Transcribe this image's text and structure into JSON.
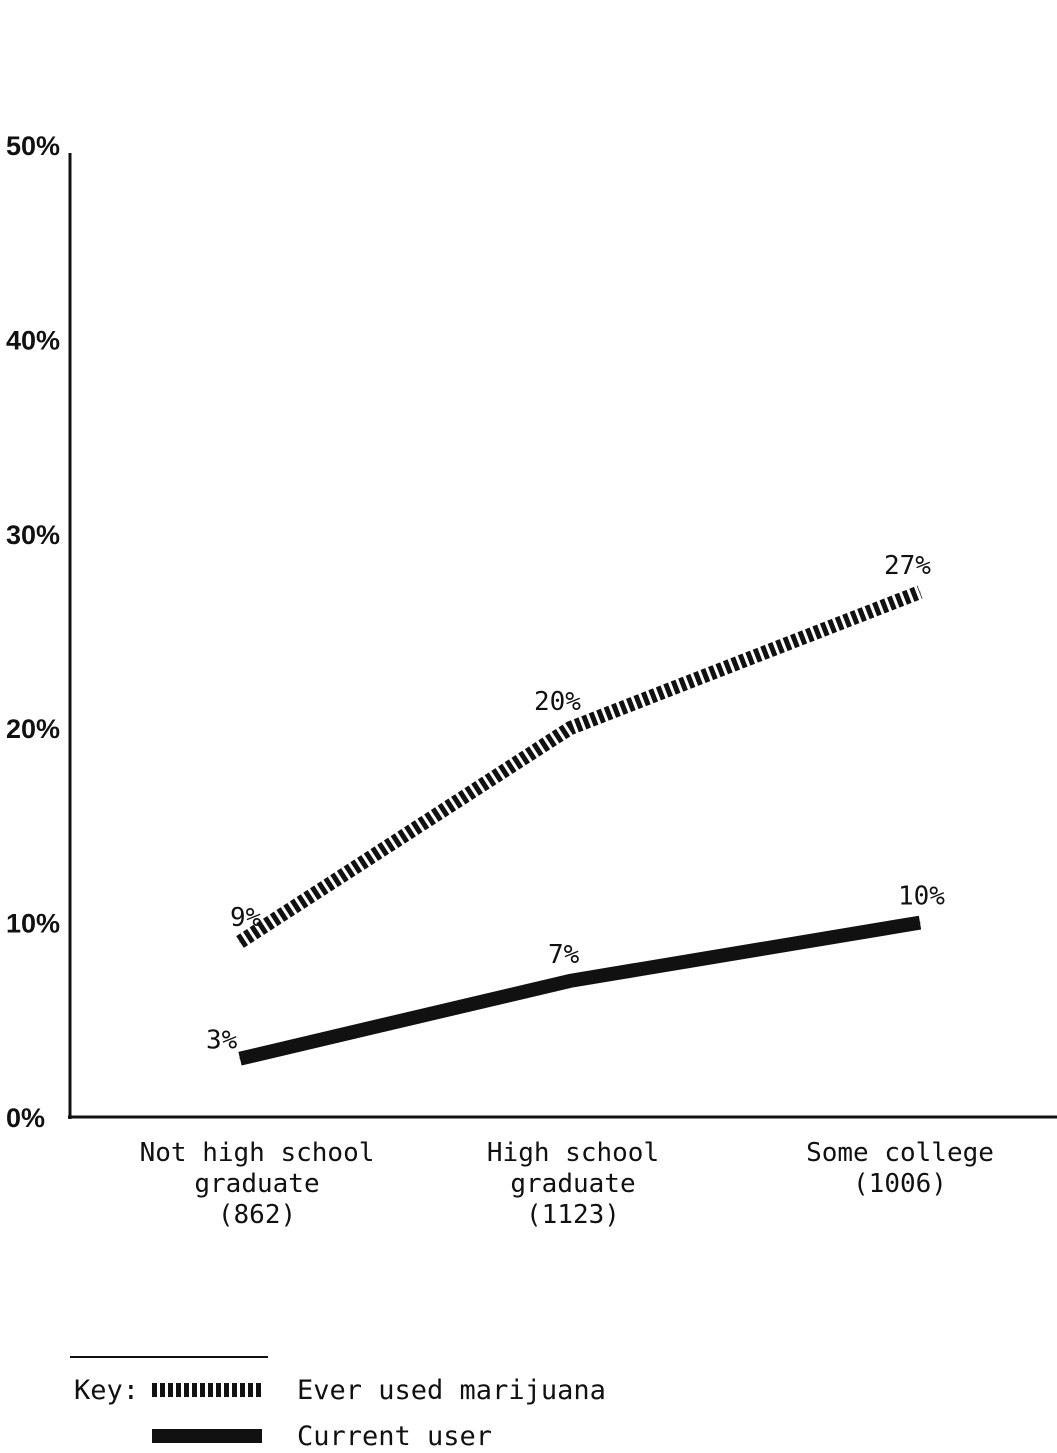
{
  "chart_data": {
    "type": "line",
    "categories": [
      [
        "Not high school",
        "graduate",
        "(862)"
      ],
      [
        "High school",
        "graduate",
        "(1123)"
      ],
      [
        "Some college",
        "(1006)"
      ]
    ],
    "ylim": [
      0,
      50
    ],
    "yticks": [
      0,
      10,
      20,
      30,
      40,
      50
    ],
    "ytick_labels": [
      "0%",
      "10%",
      "20%",
      "30%",
      "40%",
      "50%"
    ],
    "grid": false,
    "series": [
      {
        "name": "Ever used marijuana",
        "style": "dashed",
        "values": [
          9,
          20,
          27
        ],
        "labels": [
          "9%",
          "20%",
          "27%"
        ]
      },
      {
        "name": "Current user",
        "style": "solid",
        "values": [
          3,
          7,
          10
        ],
        "labels": [
          "3%",
          "7%",
          "10%"
        ]
      }
    ],
    "legend": {
      "placement": "bottom-left",
      "title": "Key:"
    },
    "colors": {
      "line": "#111111",
      "background": "#ffffff"
    }
  }
}
